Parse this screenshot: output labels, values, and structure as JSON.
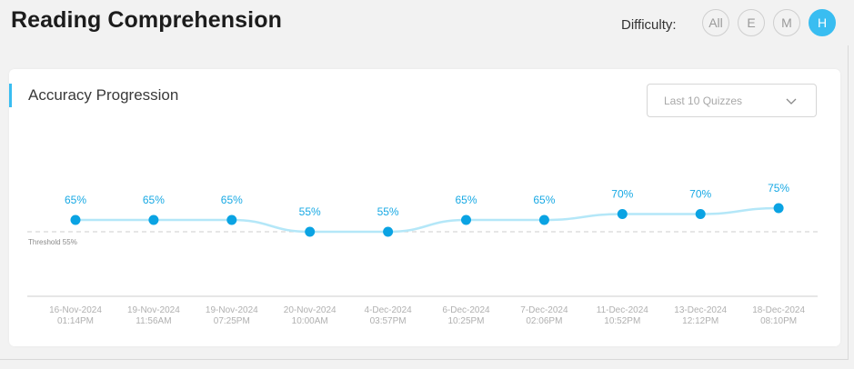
{
  "header": {
    "title": "Reading Comprehension",
    "difficulty_label": "Difficulty:",
    "difficulty_options": [
      {
        "label": "All",
        "active": false
      },
      {
        "label": "E",
        "active": false
      },
      {
        "label": "M",
        "active": false
      },
      {
        "label": "H",
        "active": true
      }
    ]
  },
  "card": {
    "title": "Accuracy Progression",
    "range_select": {
      "value": "Last 10 Quizzes"
    }
  },
  "colors": {
    "accent": "#39bdf1",
    "point": "#0aa3e3",
    "line": "#b4e7f8",
    "label": "#18a9e4",
    "threshold": "#cccccc",
    "tick": "#b0b0b0"
  },
  "chart_data": {
    "type": "line",
    "title": "Accuracy Progression",
    "xlabel": "",
    "ylabel": "",
    "grid": false,
    "legend": "none",
    "x": [
      [
        "16-Nov-2024",
        "01:14PM"
      ],
      [
        "19-Nov-2024",
        "11:56AM"
      ],
      [
        "19-Nov-2024",
        "07:25PM"
      ],
      [
        "20-Nov-2024",
        "10:00AM"
      ],
      [
        "4-Dec-2024",
        "03:57PM"
      ],
      [
        "6-Dec-2024",
        "10:25PM"
      ],
      [
        "7-Dec-2024",
        "02:06PM"
      ],
      [
        "11-Dec-2024",
        "10:52PM"
      ],
      [
        "13-Dec-2024",
        "12:12PM"
      ],
      [
        "18-Dec-2024",
        "08:10PM"
      ]
    ],
    "values": [
      65,
      65,
      65,
      55,
      55,
      65,
      65,
      70,
      70,
      75
    ],
    "value_suffix": "%",
    "threshold": {
      "value": 55,
      "label": "Threshold 55%"
    }
  }
}
